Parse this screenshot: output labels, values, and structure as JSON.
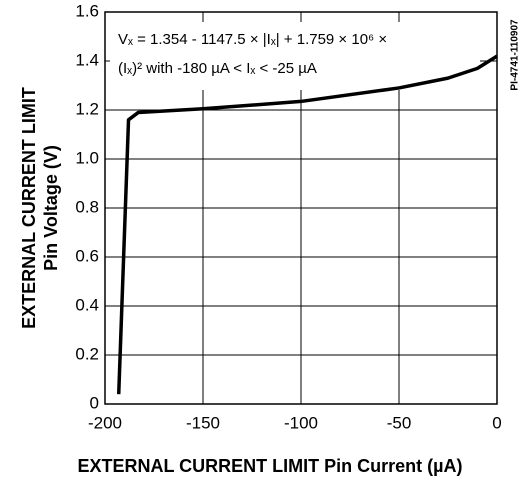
{
  "chart_data": {
    "type": "line",
    "x_label": "EXTERNAL CURRENT LIMIT Pin Current (µA)",
    "y_label": [
      "EXTERNAL CURRENT LIMIT",
      "Pin Voltage (V)"
    ],
    "annotations": [
      "Vₓ = 1.354 - 1147.5 × |Iₓ| + 1.759 × 10⁶ ×",
      "(Iₓ)² with -180 µA < Iₓ < -25 µA"
    ],
    "figure_id": "PI-4741-110907",
    "series": [
      {
        "color": "#000000",
        "x": [
          -193,
          -188,
          -183,
          -150,
          -100,
          -50,
          -25,
          -10,
          0
        ],
        "values": [
          0.04,
          1.16,
          1.19,
          1.205,
          1.235,
          1.29,
          1.33,
          1.37,
          1.42
        ]
      }
    ],
    "xlim": [
      -200,
      0
    ],
    "xticks": [
      -200,
      -150,
      -100,
      -50,
      0
    ],
    "ylim": [
      0,
      1.6
    ],
    "yticks": [
      0,
      0.2,
      0.4,
      0.6,
      0.8,
      {
        "value": 1,
        "label": "1.0"
      },
      1.2,
      1.4,
      1.6
    ],
    "grid": true
  }
}
